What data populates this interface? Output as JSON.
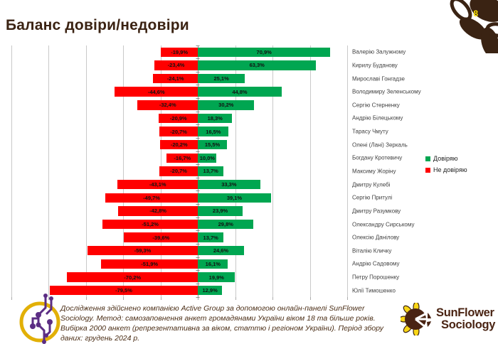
{
  "slide": {
    "title": "Баланс довіри/недовіри",
    "page_number": "8"
  },
  "chart_data": {
    "type": "bar",
    "orientation": "horizontal-diverging",
    "title": "Баланс довіри/недовіри",
    "xlim": [
      -100,
      80
    ],
    "gridline_step": 20,
    "grid": true,
    "legend_position": "right-middle",
    "value_label_format": "comma-decimal-percent",
    "categories": [
      "Валерію Залужному",
      "Кирилу Буданову",
      "Мирославі Гонгадзе",
      "Володимиру Зеленському",
      "Сергію Стерненку",
      "Андрію Білецькому",
      "Тарасу Чмуту",
      "Олені (Лані) Зеркаль",
      "Богдану Кротевичу",
      "Максиму Жоріну",
      "Дмитру Кулебі",
      "Сергію Притулі",
      "Дмитру Разумкову",
      "Олександру Сирському",
      "Олексію Данілову",
      "Віталію Кличку",
      "Андрію Садовому",
      "Петру Порошенку",
      "Юлії Тимошенко"
    ],
    "series": [
      {
        "name": "Довіряю",
        "color": "#00A651",
        "values": [
          70.9,
          63.3,
          25.1,
          44.8,
          30.2,
          18.3,
          16.5,
          15.5,
          10.0,
          13.7,
          33.3,
          39.1,
          23.9,
          29.8,
          13.7,
          24.6,
          16.1,
          19.9,
          12.9
        ]
      },
      {
        "name": "Не довіряю",
        "color": "#FF0000",
        "values": [
          -19.9,
          -23.4,
          -24.1,
          -44.6,
          -32.4,
          -20.9,
          -20.7,
          -20.2,
          -16.7,
          -20.7,
          -43.1,
          -49.7,
          -42.8,
          -51.2,
          -39.6,
          -59.3,
          -51.9,
          -70.2,
          -79.5
        ]
      }
    ]
  },
  "legend": {
    "trust": "Довіряю",
    "distrust": "Не довіряю"
  },
  "footer": {
    "text": "Дослідження здійснено компанією Active Group за допомогою онлайн-панелі SunFlower Sociology. Метод: самозаповнення анкет громадянами України віком 18 та більше років. Вибірка 2000 анкет (репрезентативна за віком, статтю і регіоном України). Період збору даних: грудень 2024 р."
  },
  "logos": {
    "sunflower": {
      "line1": "SunFlower",
      "line2": "Sociology"
    }
  },
  "colors": {
    "trust_green": "#00A651",
    "distrust_red": "#FF0000",
    "brand_brown": "#3B2313",
    "footer_brown": "#4A2D15",
    "gridline_gray": "#C9C9C9",
    "logo_purple": "#5B2D84",
    "logo_yellow": "#E2B007",
    "page_number_yellow": "#FFE500"
  }
}
